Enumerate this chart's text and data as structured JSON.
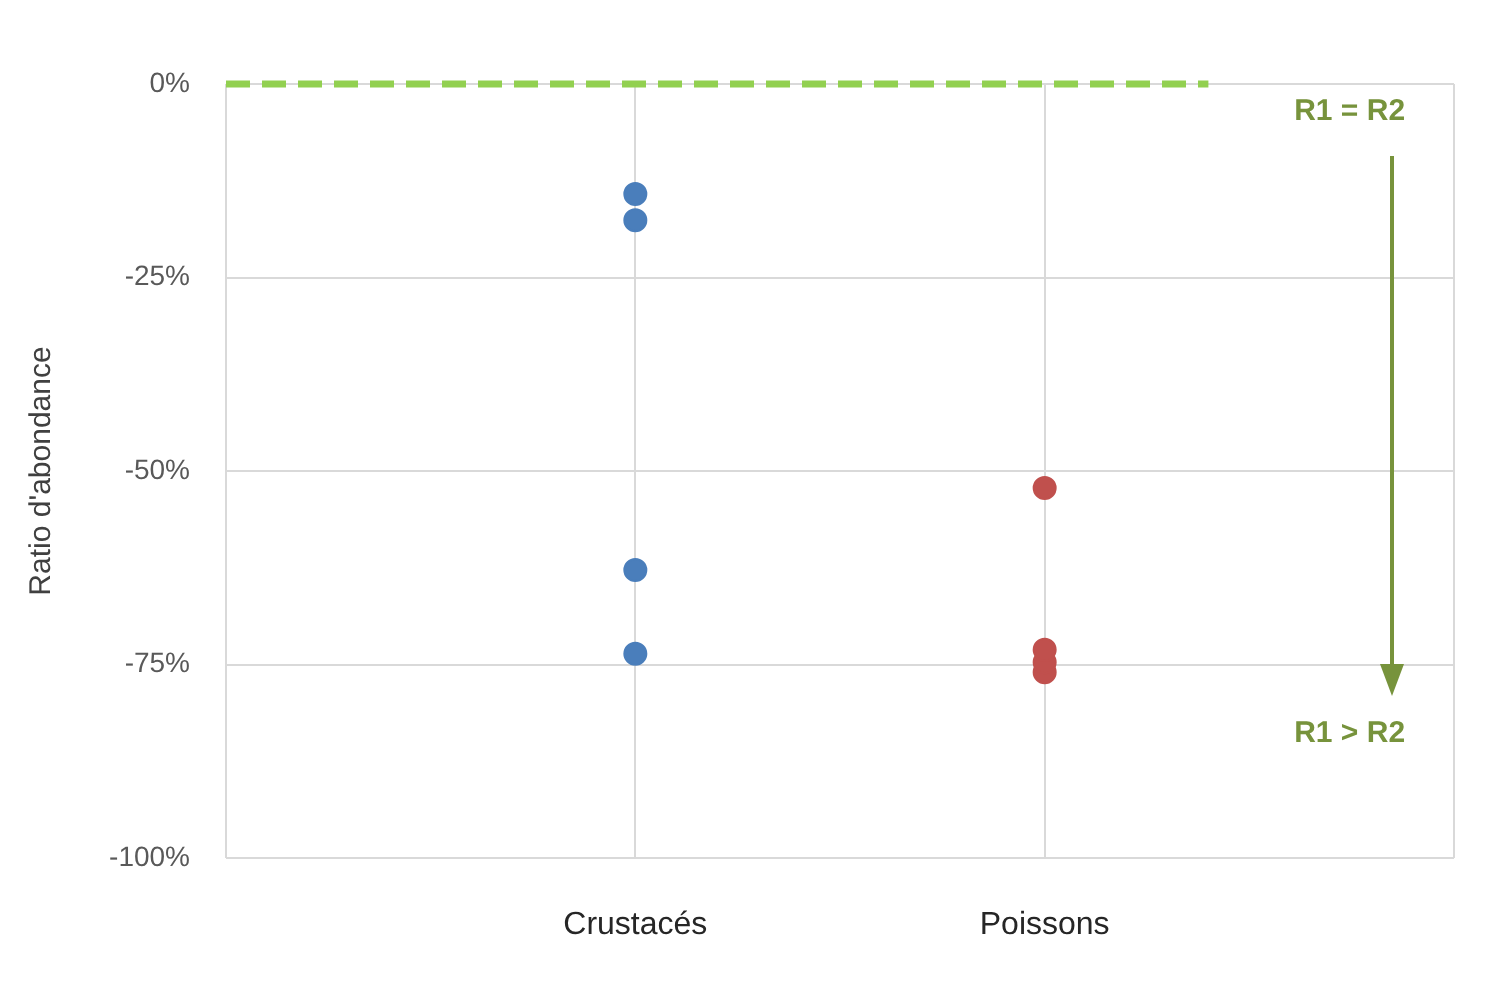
{
  "chart_data": {
    "type": "scatter",
    "ylabel": "Ratio d'abondance",
    "categories": [
      null,
      "Crustacés",
      "Poissons",
      null
    ],
    "series": [
      {
        "color": "#4a7ebb",
        "values": [
          null,
          -14.2,
          null,
          null
        ]
      },
      {
        "color": "#4a7ebb",
        "values": [
          null,
          -17.6,
          null,
          null
        ]
      },
      {
        "color": "#4a7ebb",
        "values": [
          null,
          -62.8,
          null,
          null
        ]
      },
      {
        "color": "#4a7ebb",
        "values": [
          null,
          -73.6,
          null,
          null
        ]
      },
      {
        "color": "#c0504d",
        "values": [
          null,
          null,
          -52.2,
          null
        ]
      },
      {
        "color": "#c0504d",
        "values": [
          null,
          null,
          -73.1,
          null
        ]
      },
      {
        "color": "#c0504d",
        "values": [
          null,
          null,
          -74.7,
          null
        ]
      },
      {
        "color": "#c0504d",
        "values": [
          null,
          null,
          -76,
          null
        ]
      }
    ],
    "ylim": [
      -100,
      0
    ],
    "yticks": [
      {
        "value": -100,
        "label": "-100%"
      },
      {
        "value": -75,
        "label": "-75%"
      },
      {
        "value": -50,
        "label": "-50%"
      },
      {
        "value": -25,
        "label": "-25%"
      },
      {
        "value": 0,
        "label": "0%"
      }
    ],
    "ref_lines": [
      {
        "axis": "y",
        "value": 0,
        "color": "#92d050",
        "line_style": "dashed"
      }
    ],
    "annotations": [
      "R1 = R2",
      "R1 > R2"
    ],
    "grid": true,
    "marker": "circle",
    "legend": false
  }
}
